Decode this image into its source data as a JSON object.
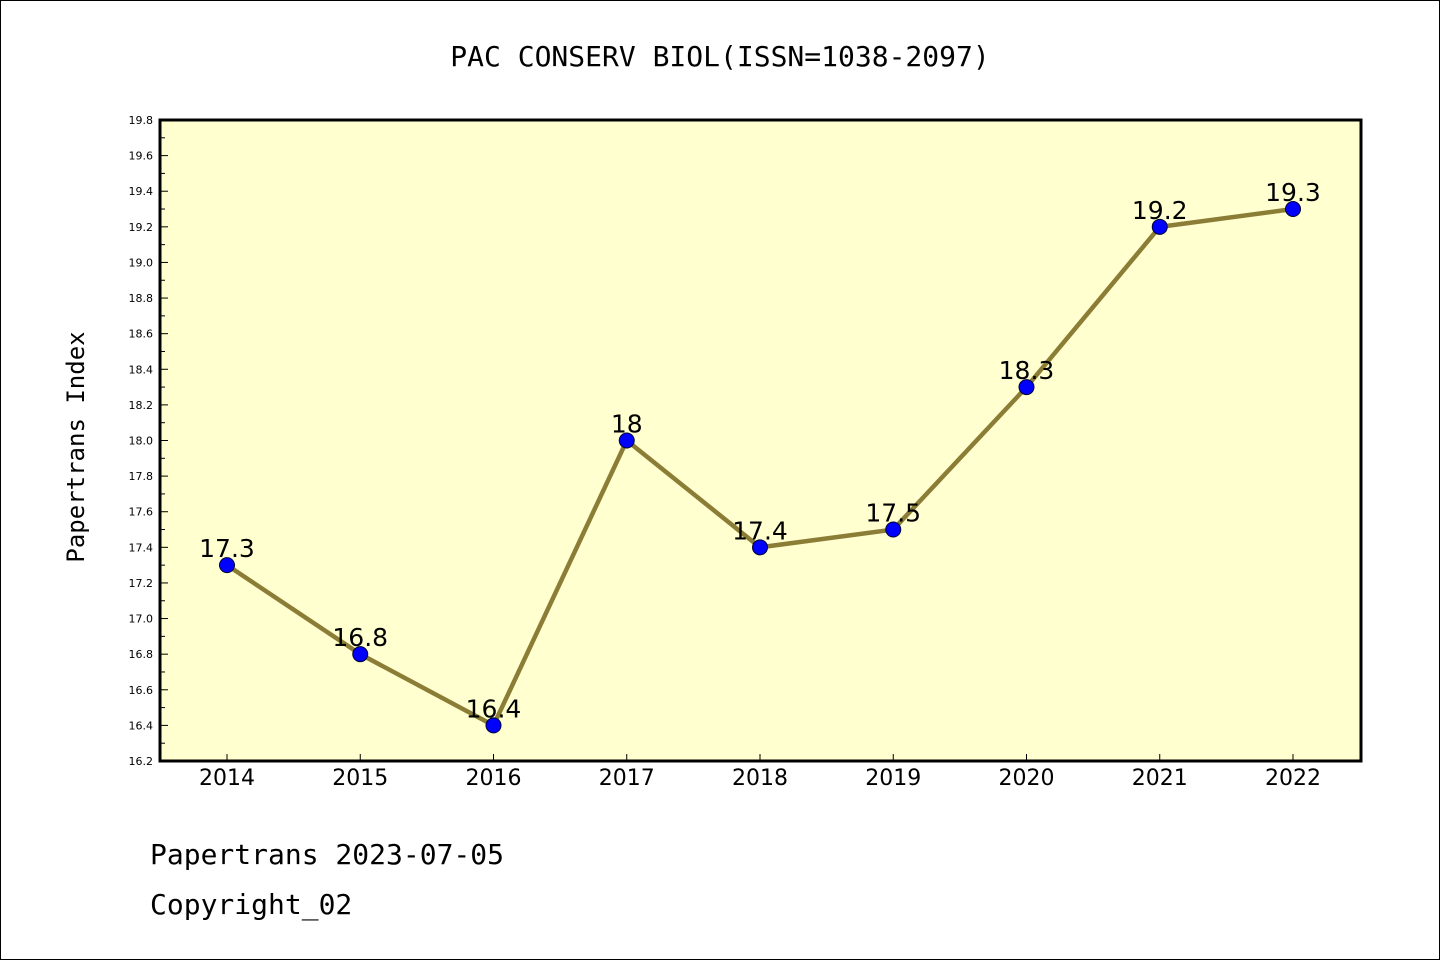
{
  "chart_data": {
    "type": "line",
    "title": "PAC CONSERV BIOL(ISSN=1038-2097)",
    "xlabel": "",
    "ylabel": "Papertrans Index",
    "categories": [
      "2014",
      "2015",
      "2016",
      "2017",
      "2018",
      "2019",
      "2020",
      "2021",
      "2022"
    ],
    "series": [
      {
        "values": [
          17.3,
          16.8,
          16.4,
          18.0,
          17.4,
          17.5,
          18.3,
          19.2,
          19.3
        ],
        "labels": [
          "17.3",
          "16.8",
          "16.4",
          "18",
          "17.4",
          "17.5",
          "18.3",
          "19.2",
          "19.3"
        ]
      }
    ],
    "ylim": [
      16.2,
      19.8
    ],
    "yticks": [
      "16.2",
      "16.4",
      "16.6",
      "16.8",
      "17.0",
      "17.2",
      "17.4",
      "17.6",
      "17.8",
      "18.0",
      "18.2",
      "18.4",
      "18.6",
      "18.8",
      "19.0",
      "19.2",
      "19.4",
      "19.6",
      "19.8"
    ],
    "grid": false,
    "colors": {
      "plot_background": "#ffffd0",
      "line": "#8b7d36",
      "marker": "#0000ff"
    }
  },
  "footer": {
    "line1": "Papertrans 2023-07-05",
    "line2": "Copyright_02"
  }
}
